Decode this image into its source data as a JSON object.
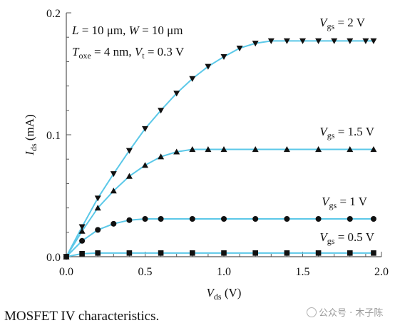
{
  "chart_data": {
    "type": "line",
    "xlabel_main": "V",
    "xlabel_sub": "ds",
    "xlabel_unit": "(V)",
    "ylabel_main": "I",
    "ylabel_sub": "ds",
    "ylabel_unit": "(mA)",
    "xlim": [
      0,
      2.0
    ],
    "ylim": [
      0,
      0.2
    ],
    "x_ticks": [
      "0.0",
      "0.5",
      "1.0",
      "1.5",
      "2.0"
    ],
    "y_ticks": [
      "0.0",
      "0.1",
      "0.2"
    ],
    "grid": false,
    "line_color": "#5bc8e8",
    "marker_color": "#111111",
    "params": {
      "line1": "L = 10 μm, W = 10 μm",
      "line2": "T_oxe = 4 nm, V_t = 0.3 V"
    },
    "series": [
      {
        "name": "V_gs = 2 V",
        "label_main": "V",
        "label_sub": "gs",
        "label_val": "= 2 V",
        "marker": "triangle-down",
        "x": [
          0.0,
          0.1,
          0.2,
          0.3,
          0.4,
          0.5,
          0.6,
          0.7,
          0.8,
          0.9,
          1.0,
          1.1,
          1.2,
          1.3,
          1.4,
          1.5,
          1.6,
          1.7,
          1.8,
          1.9,
          1.95
        ],
        "y": [
          0.0,
          0.0245,
          0.048,
          0.068,
          0.087,
          0.105,
          0.12,
          0.134,
          0.146,
          0.156,
          0.164,
          0.171,
          0.175,
          0.177,
          0.177,
          0.177,
          0.177,
          0.177,
          0.177,
          0.177,
          0.177
        ]
      },
      {
        "name": "V_gs = 1.5 V",
        "label_main": "V",
        "label_sub": "gs",
        "label_val": "= 1.5 V",
        "marker": "triangle-up",
        "x": [
          0.0,
          0.1,
          0.2,
          0.3,
          0.4,
          0.5,
          0.6,
          0.7,
          0.8,
          0.9,
          1.0,
          1.2,
          1.4,
          1.6,
          1.8,
          1.95
        ],
        "y": [
          0.0,
          0.021,
          0.04,
          0.054,
          0.066,
          0.075,
          0.082,
          0.086,
          0.088,
          0.088,
          0.088,
          0.088,
          0.088,
          0.088,
          0.088,
          0.088
        ]
      },
      {
        "name": "V_gs = 1 V",
        "label_main": "V",
        "label_sub": "gs",
        "label_val": "= 1 V",
        "marker": "circle",
        "x": [
          0.0,
          0.1,
          0.2,
          0.3,
          0.4,
          0.5,
          0.6,
          0.8,
          1.0,
          1.2,
          1.4,
          1.6,
          1.8,
          1.95
        ],
        "y": [
          0.0,
          0.013,
          0.022,
          0.027,
          0.03,
          0.031,
          0.031,
          0.031,
          0.031,
          0.031,
          0.031,
          0.031,
          0.031,
          0.031
        ]
      },
      {
        "name": "V_gs = 0.5 V",
        "label_main": "V",
        "label_sub": "gs",
        "label_val": "= 0.5 V",
        "marker": "square",
        "x": [
          0.0,
          0.1,
          0.2,
          0.4,
          0.6,
          0.8,
          1.0,
          1.2,
          1.4,
          1.6,
          1.8,
          1.95
        ],
        "y": [
          0.0,
          0.0025,
          0.003,
          0.003,
          0.003,
          0.003,
          0.003,
          0.003,
          0.003,
          0.003,
          0.003,
          0.003
        ]
      }
    ]
  },
  "caption": "MOSFET IV characteristics.",
  "watermark": "公众号 · 木子陈"
}
